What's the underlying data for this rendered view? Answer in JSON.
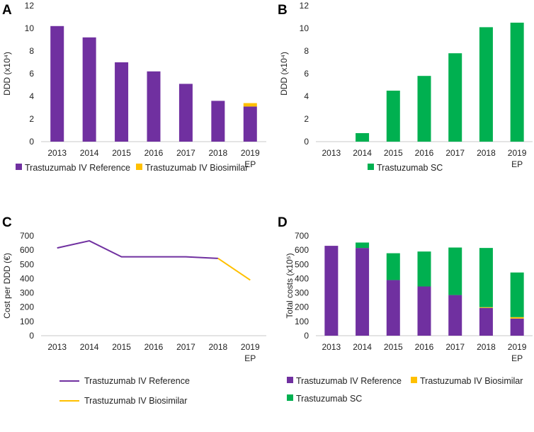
{
  "figure": {
    "panel_a": "A",
    "panel_b": "B",
    "panel_c": "C",
    "panel_d": "D"
  },
  "colors": {
    "reference": "#7030a0",
    "biosimilar": "#ffc000",
    "sc": "#00b050"
  },
  "chart_data": [
    {
      "panel": "A",
      "type": "bar",
      "stacked": true,
      "ylabel": "DDD (x10⁴)",
      "ylim": [
        0,
        12
      ],
      "yticks": [
        0,
        2,
        4,
        6,
        8,
        10,
        12
      ],
      "categories": [
        "2013",
        "2014",
        "2015",
        "2016",
        "2017",
        "2018",
        "2019"
      ],
      "category_sublabels": [
        "",
        "",
        "",
        "",
        "",
        "",
        "EP"
      ],
      "series": [
        {
          "name": "Trastuzumab IV Reference",
          "color_key": "reference",
          "values": [
            10.2,
            9.2,
            7.0,
            6.2,
            5.1,
            3.6,
            3.1
          ]
        },
        {
          "name": "Trastuzumab IV Biosimilar",
          "color_key": "biosimilar",
          "values": [
            0,
            0,
            0,
            0,
            0,
            0,
            0.3
          ]
        }
      ],
      "legend": [
        "Trastuzumab IV Reference",
        "Trastuzumab IV Biosimilar"
      ]
    },
    {
      "panel": "B",
      "type": "bar",
      "stacked": true,
      "ylabel": "DDD (x10⁴)",
      "ylim": [
        0,
        12
      ],
      "yticks": [
        0,
        2,
        4,
        6,
        8,
        10,
        12
      ],
      "categories": [
        "2013",
        "2014",
        "2015",
        "2016",
        "2017",
        "2018",
        "2019"
      ],
      "category_sublabels": [
        "",
        "",
        "",
        "",
        "",
        "",
        "EP"
      ],
      "series": [
        {
          "name": "Trastuzumab SC",
          "color_key": "sc",
          "values": [
            0,
            0.75,
            4.5,
            5.8,
            7.8,
            10.1,
            10.5
          ]
        }
      ],
      "legend": [
        "Trastuzumab SC"
      ]
    },
    {
      "panel": "C",
      "type": "line",
      "ylabel": "Cost per DDD (€)",
      "ylim": [
        0,
        700
      ],
      "yticks": [
        0,
        100,
        200,
        300,
        400,
        500,
        600,
        700
      ],
      "categories": [
        "2013",
        "2014",
        "2015",
        "2016",
        "2017",
        "2018",
        "2019"
      ],
      "category_sublabels": [
        "",
        "",
        "",
        "",
        "",
        "",
        "EP"
      ],
      "series": [
        {
          "name": "Trastuzumab IV Reference",
          "color_key": "reference",
          "values": [
            615,
            665,
            553,
            553,
            553,
            542,
            null
          ]
        },
        {
          "name": "Trastuzumab IV Biosimilar",
          "color_key": "biosimilar",
          "values": [
            null,
            null,
            null,
            null,
            null,
            542,
            390
          ]
        }
      ],
      "legend": [
        "Trastuzumab IV Reference",
        "Trastuzumab IV Biosimilar"
      ]
    },
    {
      "panel": "D",
      "type": "bar",
      "stacked": true,
      "ylabel": "Total costs (x10⁵)",
      "ylim": [
        0,
        700
      ],
      "yticks": [
        0,
        100,
        200,
        300,
        400,
        500,
        600,
        700
      ],
      "categories": [
        "2013",
        "2014",
        "2015",
        "2016",
        "2017",
        "2018",
        "2019"
      ],
      "category_sublabels": [
        "",
        "",
        "",
        "",
        "",
        "",
        "EP"
      ],
      "series": [
        {
          "name": "Trastuzumab IV Reference",
          "color_key": "reference",
          "values": [
            630,
            615,
            390,
            345,
            285,
            195,
            120
          ]
        },
        {
          "name": "Trastuzumab IV Biosimilar",
          "color_key": "biosimilar",
          "values": [
            0,
            0,
            0,
            0,
            0,
            5,
            10
          ]
        },
        {
          "name": "Trastuzumab SC",
          "color_key": "sc",
          "values": [
            0,
            38,
            188,
            245,
            333,
            415,
            313
          ]
        }
      ],
      "legend": [
        "Trastuzumab IV Reference",
        "Trastuzumab IV Biosimilar",
        "Trastuzumab SC"
      ]
    }
  ]
}
